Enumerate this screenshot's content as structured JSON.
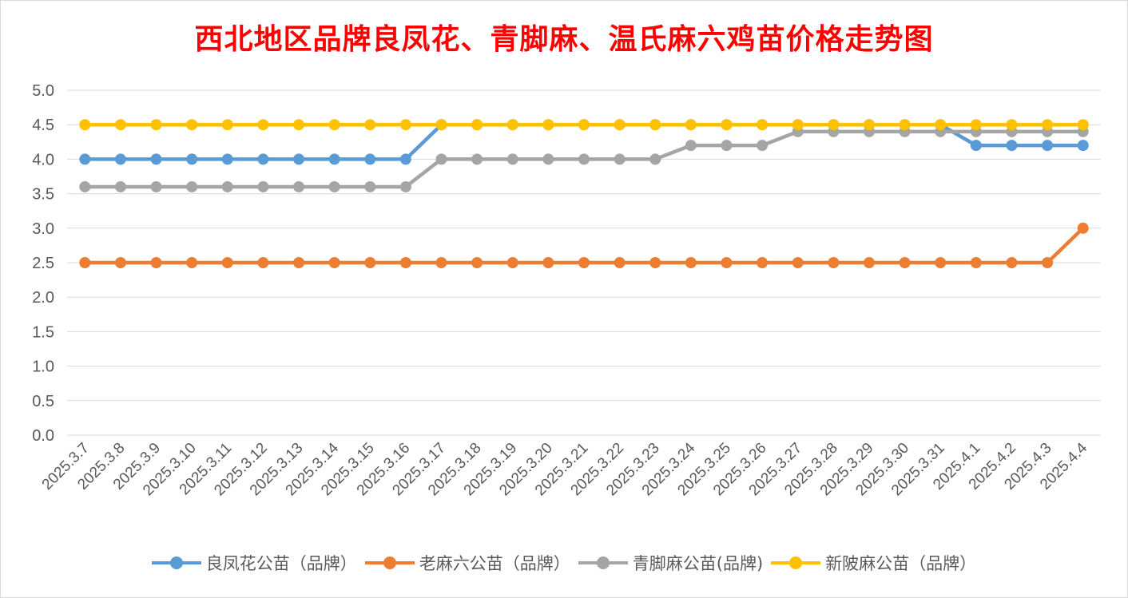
{
  "chart_data": {
    "type": "line",
    "title": "西北地区品牌良凤花、青脚麻、温氏麻六鸡苗价格走势图",
    "categories": [
      "2025.3.7",
      "2025.3.8",
      "2025.3.9",
      "2025.3.10",
      "2025.3.11",
      "2025.3.12",
      "2025.3.13",
      "2025.3.14",
      "2025.3.15",
      "2025.3.16",
      "2025.3.17",
      "2025.3.18",
      "2025.3.19",
      "2025.3.20",
      "2025.3.21",
      "2025.3.22",
      "2025.3.23",
      "2025.3.24",
      "2025.3.25",
      "2025.3.26",
      "2025.3.27",
      "2025.3.28",
      "2025.3.29",
      "2025.3.30",
      "2025.3.31",
      "2025.4.1",
      "2025.4.2",
      "2025.4.3",
      "2025.4.4"
    ],
    "yticks": [
      "0.0",
      "0.5",
      "1.0",
      "1.5",
      "2.0",
      "2.5",
      "3.0",
      "3.5",
      "4.0",
      "4.5",
      "5.0"
    ],
    "ylim": [
      0,
      5
    ],
    "grid": true,
    "legend_position": "bottom",
    "series": [
      {
        "name": "良凤花公苗（品牌）",
        "color": "#5b9bd5",
        "values": [
          4.0,
          4.0,
          4.0,
          4.0,
          4.0,
          4.0,
          4.0,
          4.0,
          4.0,
          4.0,
          4.5,
          4.5,
          4.5,
          4.5,
          4.5,
          4.5,
          4.5,
          4.5,
          4.5,
          4.5,
          4.5,
          4.5,
          4.5,
          4.5,
          4.5,
          4.2,
          4.2,
          4.2,
          4.2
        ]
      },
      {
        "name": "老麻六公苗（品牌）",
        "color": "#ed7d31",
        "values": [
          2.5,
          2.5,
          2.5,
          2.5,
          2.5,
          2.5,
          2.5,
          2.5,
          2.5,
          2.5,
          2.5,
          2.5,
          2.5,
          2.5,
          2.5,
          2.5,
          2.5,
          2.5,
          2.5,
          2.5,
          2.5,
          2.5,
          2.5,
          2.5,
          2.5,
          2.5,
          2.5,
          2.5,
          3.0
        ]
      },
      {
        "name": "青脚麻公苗(品牌)",
        "color": "#a5a5a5",
        "values": [
          3.6,
          3.6,
          3.6,
          3.6,
          3.6,
          3.6,
          3.6,
          3.6,
          3.6,
          3.6,
          4.0,
          4.0,
          4.0,
          4.0,
          4.0,
          4.0,
          4.0,
          4.2,
          4.2,
          4.2,
          4.4,
          4.4,
          4.4,
          4.4,
          4.4,
          4.4,
          4.4,
          4.4,
          4.4
        ]
      },
      {
        "name": "新陂麻公苗（品牌）",
        "color": "#ffc000",
        "values": [
          4.5,
          4.5,
          4.5,
          4.5,
          4.5,
          4.5,
          4.5,
          4.5,
          4.5,
          4.5,
          4.5,
          4.5,
          4.5,
          4.5,
          4.5,
          4.5,
          4.5,
          4.5,
          4.5,
          4.5,
          4.5,
          4.5,
          4.5,
          4.5,
          4.5,
          4.5,
          4.5,
          4.5,
          4.5
        ]
      }
    ]
  }
}
